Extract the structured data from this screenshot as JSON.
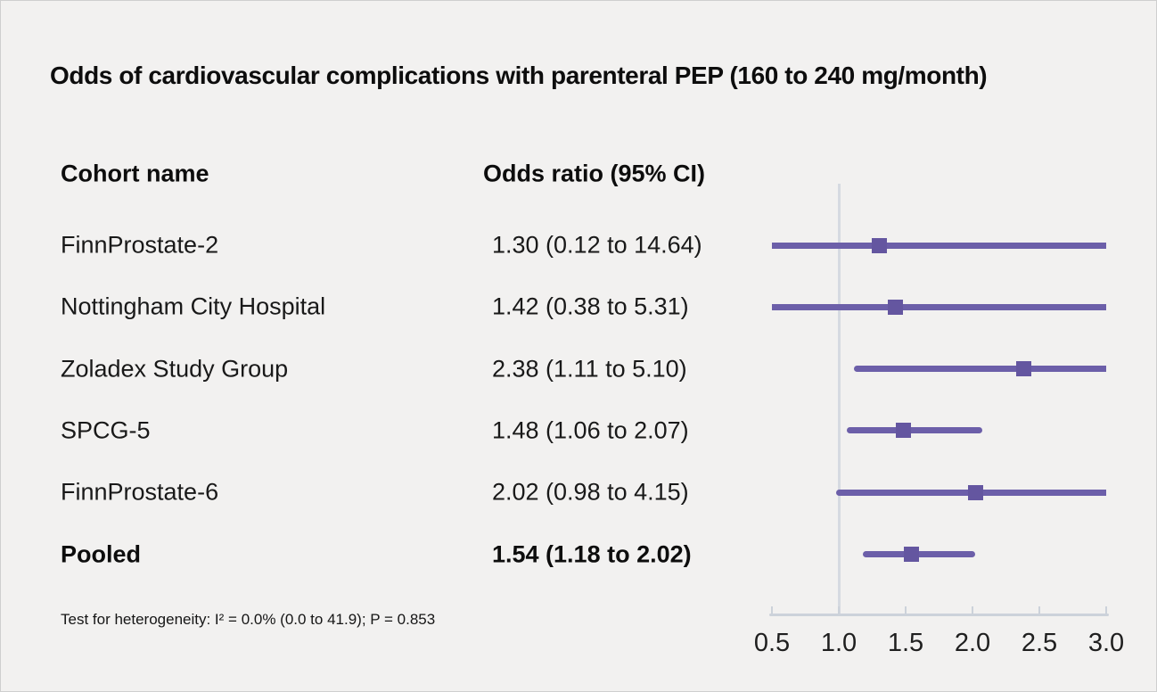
{
  "title": "Odds of cardiovascular complications with parenteral PEP (160 to 240 mg/month)",
  "table": {
    "cohort_header": "Cohort name",
    "or_header": "Odds ratio (95% CI)"
  },
  "footnote": "Test for heterogeneity: I² = 0.0% (0.0 to 41.9); P = 0.853",
  "chart_data": {
    "type": "forest",
    "title": "Odds of cardiovascular complications with parenteral PEP (160 to 240 mg/month)",
    "xlabel": "Odds ratio",
    "axis": {
      "min": 0.5,
      "max": 3.0,
      "ticks": [
        0.5,
        1.0,
        1.5,
        2.0,
        2.5,
        3.0
      ],
      "tick_labels": [
        "0.5",
        "1.0",
        "1.5",
        "2.0",
        "2.5",
        "3.0"
      ],
      "reference_line": 1.0,
      "grid": false
    },
    "colors": {
      "ci_line": "#6c5fa9",
      "marker": "#6456a0",
      "reference_line": "#d6dae1",
      "axis_line": "#ccd2da"
    },
    "rows": [
      {
        "name": "FinnProstate-2",
        "or": 1.3,
        "ci_low": 0.12,
        "ci_high": 14.64,
        "display": "1.30 (0.12 to 14.64)",
        "bold": false
      },
      {
        "name": "Nottingham City Hospital",
        "or": 1.42,
        "ci_low": 0.38,
        "ci_high": 5.31,
        "display": "1.42 (0.38 to 5.31)",
        "bold": false
      },
      {
        "name": "Zoladex Study Group",
        "or": 2.38,
        "ci_low": 1.11,
        "ci_high": 5.1,
        "display": "2.38 (1.11 to 5.10)",
        "bold": false
      },
      {
        "name": "SPCG-5",
        "or": 1.48,
        "ci_low": 1.06,
        "ci_high": 2.07,
        "display": "1.48 (1.06 to 2.07)",
        "bold": false
      },
      {
        "name": "FinnProstate-6",
        "or": 2.02,
        "ci_low": 0.98,
        "ci_high": 4.15,
        "display": "2.02 (0.98 to 4.15)",
        "bold": false
      },
      {
        "name": "Pooled",
        "or": 1.54,
        "ci_low": 1.18,
        "ci_high": 2.02,
        "display": "1.54 (1.18 to 2.02)",
        "bold": true
      }
    ]
  }
}
